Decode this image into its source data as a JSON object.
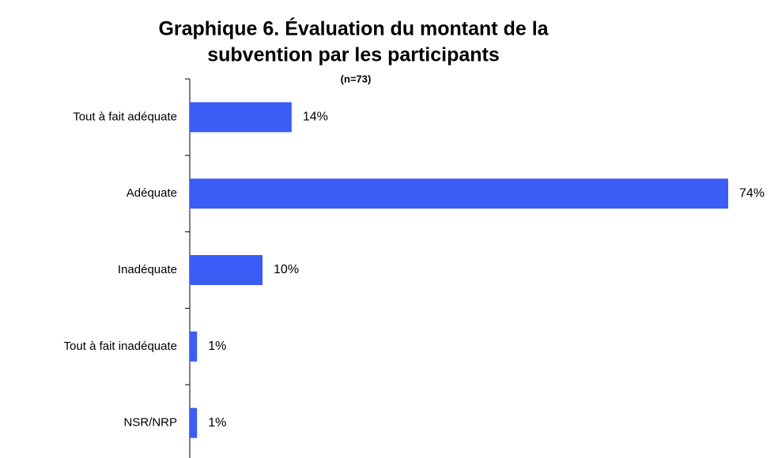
{
  "chart_data": {
    "type": "bar",
    "orientation": "horizontal",
    "title": [
      "Graphique 6.  Évaluation du montant de la",
      "subvention par les participants"
    ],
    "subtitle": "(n=73)",
    "categories": [
      "Tout à fait adéquate",
      "Adéquate",
      "Inadéquate",
      "Tout à fait inadéquate",
      "NSR/NRP"
    ],
    "values": [
      14,
      74,
      10,
      1,
      1
    ],
    "value_labels": [
      "14%",
      "74%",
      "10%",
      "1%",
      "1%"
    ],
    "color": "#3b5cf5"
  }
}
